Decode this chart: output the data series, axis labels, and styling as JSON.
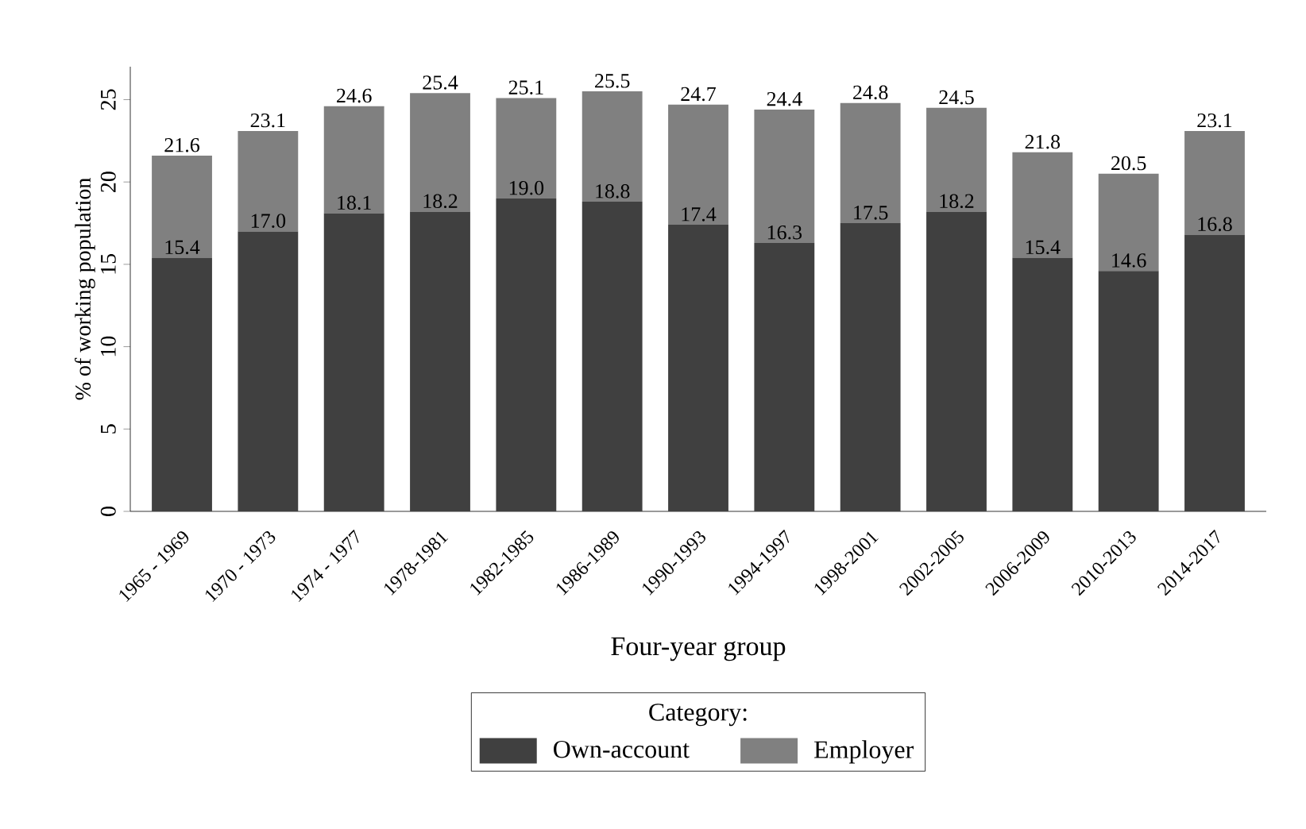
{
  "chart_data": {
    "type": "bar",
    "stacked": true,
    "xlabel": "Four-year group",
    "ylabel": "% of working population",
    "legend_title": "Category:",
    "legend": "bottom",
    "categories": [
      "1965 - 1969",
      "1970 - 1973",
      "1974 - 1977",
      "1978-1981",
      "1982-1985",
      "1986-1989",
      "1990-1993",
      "1994-1997",
      "1998-2001",
      "2002-2005",
      "2006-2009",
      "2010-2013",
      "2014-2017"
    ],
    "series": [
      {
        "name": "Own-account",
        "color": "#404040",
        "values": [
          15.4,
          17.0,
          18.1,
          18.2,
          19.0,
          18.8,
          17.4,
          16.3,
          17.5,
          18.2,
          15.4,
          14.6,
          16.8
        ],
        "value_labels": [
          "15.4",
          "17.0",
          "18.1",
          "18.2",
          "19.0",
          "18.8",
          "17.4",
          "16.3",
          "17.5",
          "18.2",
          "15.4",
          "14.6",
          "16.8"
        ]
      },
      {
        "name": "Employer",
        "color": "#808080",
        "values": [
          6.2,
          6.1,
          6.5,
          7.2,
          6.1,
          6.7,
          7.3,
          8.1,
          7.3,
          6.3,
          6.4,
          5.9,
          6.3
        ]
      }
    ],
    "totals": [
      "21.6",
      "23.1",
      "24.6",
      "25.4",
      "25.1",
      "25.5",
      "24.7",
      "24.4",
      "24.8",
      "24.5",
      "21.8",
      "20.5",
      "23.1"
    ],
    "ylim": [
      0,
      27
    ],
    "yticks": [
      0,
      5,
      10,
      15,
      20,
      25
    ],
    "grid": false
  }
}
